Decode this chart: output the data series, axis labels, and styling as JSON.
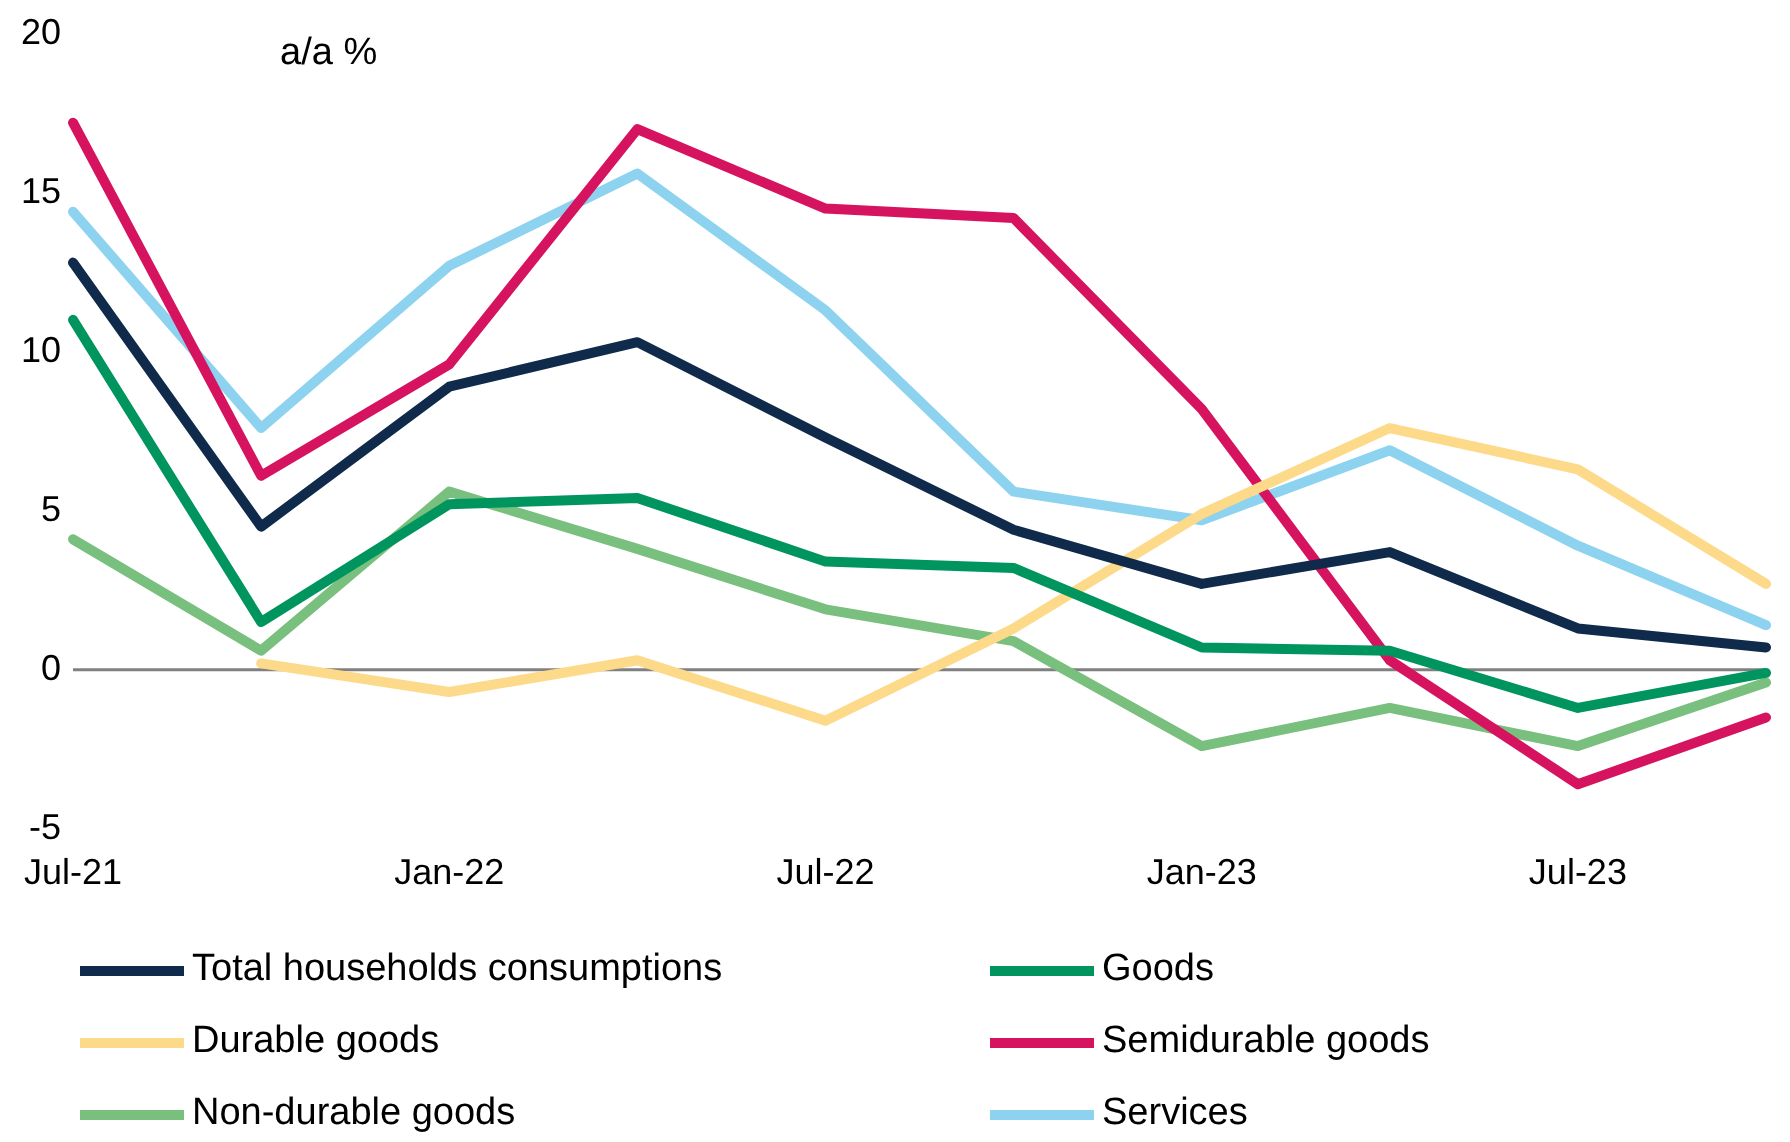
{
  "chart_data": {
    "type": "line",
    "categories": [
      "Jul-21",
      null,
      "Jan-22",
      null,
      "Jul-22",
      null,
      "Jan-23",
      null,
      "Jul-23",
      null
    ],
    "ylim": [
      -5,
      20
    ],
    "yticks": [
      -5,
      0,
      5,
      10,
      15,
      20
    ],
    "grid": false,
    "legend": "bottom",
    "marker": "none",
    "line_style": "solid",
    "annotations": [
      "a/a %"
    ],
    "ref_lines": [
      {
        "axis": "y",
        "value": 0,
        "color": "#808080"
      }
    ],
    "series": [
      {
        "name": "Total households consumptions",
        "color": "#0f2a4a",
        "values": [
          12.8,
          4.5,
          8.9,
          10.3,
          7.3,
          4.4,
          2.7,
          3.7,
          1.3,
          0.7
        ]
      },
      {
        "name": "Goods",
        "color": "#00955f",
        "values": [
          11,
          1.5,
          5.2,
          5.4,
          3.4,
          3.2,
          0.7,
          0.6,
          -1.2,
          -0.1
        ]
      },
      {
        "name": "Durable goods",
        "color": "#fdd98a",
        "values": [
          null,
          0.2,
          -0.7,
          0.3,
          -1.6,
          1.3,
          4.9,
          7.6,
          6.3,
          2.7
        ]
      },
      {
        "name": "Semidurable goods",
        "color": "#d6135f",
        "values": [
          17.2,
          6.1,
          9.6,
          17,
          14.5,
          14.2,
          8.2,
          0.3,
          -3.6,
          -1.5
        ]
      },
      {
        "name": "Non-durable goods",
        "color": "#79bf7e",
        "values": [
          4.1,
          0.6,
          5.6,
          3.8,
          1.9,
          0.9,
          -2.4,
          -1.2,
          -2.4,
          -0.4
        ]
      },
      {
        "name": "Services",
        "color": "#8dd3f0",
        "values": [
          14.4,
          7.6,
          12.7,
          15.6,
          11.3,
          5.6,
          4.7,
          6.9,
          3.9,
          1.4
        ]
      }
    ]
  }
}
